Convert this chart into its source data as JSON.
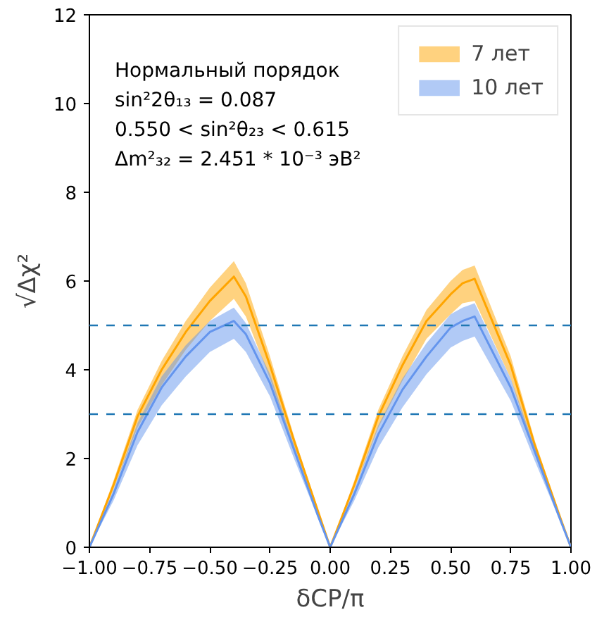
{
  "chart_data": {
    "type": "line",
    "xlabel": "δCP/π",
    "ylabel": "√Δχ²",
    "x": [
      -1,
      -0.9,
      -0.8,
      -0.7,
      -0.6,
      -0.5,
      -0.4,
      -0.35,
      -0.25,
      -0.15,
      -0.05,
      0,
      0.1,
      0.2,
      0.3,
      0.4,
      0.5,
      0.55,
      0.6,
      0.75,
      0.85,
      0.95,
      1
    ],
    "series": [
      {
        "name": "7 лет",
        "color": "#ffa500",
        "values": [
          0,
          1.4,
          2.95,
          4.0,
          4.85,
          5.55,
          6.1,
          5.65,
          4.1,
          2.4,
          0.8,
          0,
          1.4,
          2.95,
          4.1,
          5.1,
          5.7,
          5.95,
          6.05,
          4.1,
          2.3,
          0.75,
          0
        ],
        "upper": [
          0,
          1.5,
          3.1,
          4.2,
          5.1,
          5.85,
          6.45,
          5.95,
          4.3,
          2.5,
          0.85,
          0,
          1.5,
          3.1,
          4.3,
          5.35,
          6.0,
          6.25,
          6.35,
          4.3,
          2.4,
          0.8,
          0
        ],
        "lower": [
          0,
          1.3,
          2.7,
          3.65,
          4.45,
          5.1,
          5.6,
          5.2,
          3.8,
          2.2,
          0.75,
          0,
          1.3,
          2.7,
          3.75,
          4.7,
          5.25,
          5.5,
          5.55,
          3.8,
          2.1,
          0.7,
          0
        ]
      },
      {
        "name": "10 лет",
        "color": "#6495ed",
        "values": [
          0,
          1.2,
          2.6,
          3.6,
          4.3,
          4.85,
          5.1,
          4.8,
          3.7,
          2.2,
          0.7,
          0,
          1.2,
          2.55,
          3.55,
          4.3,
          4.95,
          5.1,
          5.2,
          3.6,
          2.15,
          0.7,
          0
        ],
        "upper": [
          0,
          1.3,
          2.8,
          3.85,
          4.55,
          5.1,
          5.4,
          5.05,
          3.9,
          2.3,
          0.75,
          0,
          1.3,
          2.75,
          3.8,
          4.6,
          5.25,
          5.4,
          5.5,
          3.8,
          2.25,
          0.75,
          0
        ],
        "lower": [
          0,
          1.05,
          2.3,
          3.2,
          3.85,
          4.4,
          4.7,
          4.4,
          3.4,
          2.0,
          0.65,
          0,
          1.05,
          2.25,
          3.15,
          3.9,
          4.5,
          4.65,
          4.75,
          3.3,
          1.95,
          0.65,
          0
        ]
      }
    ],
    "annotations": [
      "Нормальный порядок",
      "sin²2θ₁₃ = 0.087",
      "0.550 < sin²θ₂₃ < 0.615",
      "Δm²₃₂ = 2.451 * 10⁻³ эВ²"
    ],
    "ref_lines": [
      {
        "axis": "y",
        "value": 5,
        "color": "#1f77b4",
        "line_style": "dashed"
      },
      {
        "axis": "y",
        "value": 3,
        "color": "#1f77b4",
        "line_style": "dashed"
      }
    ],
    "xlim": [
      -1,
      1
    ],
    "ylim": [
      0,
      12
    ],
    "xticks": [
      {
        "value": -1,
        "label": "−1.00"
      },
      {
        "value": -0.75,
        "label": "−0.75"
      },
      {
        "value": -0.5,
        "label": "−0.50"
      },
      {
        "value": -0.25,
        "label": "−0.25"
      },
      {
        "value": 0,
        "label": "0.00"
      },
      {
        "value": 0.25,
        "label": "0.25"
      },
      {
        "value": 0.5,
        "label": "0.50"
      },
      {
        "value": 0.75,
        "label": "0.75"
      },
      {
        "value": 1,
        "label": "1.00"
      }
    ],
    "yticks": [
      0,
      2,
      4,
      6,
      8,
      10,
      12
    ],
    "grid": false,
    "legend": "top right"
  }
}
